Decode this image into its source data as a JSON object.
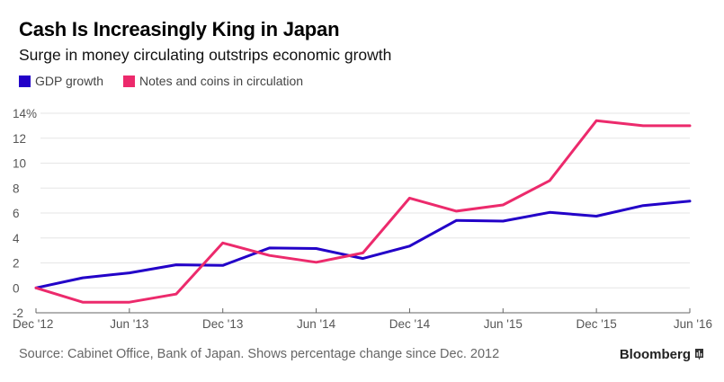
{
  "header": {
    "title": "Cash Is Increasingly King in Japan",
    "subtitle": "Surge in money circulating outstrips economic growth"
  },
  "legend": [
    {
      "label": "GDP growth",
      "color": "#2200c8"
    },
    {
      "label": "Notes and coins in circulation",
      "color": "#ec2a6c"
    }
  ],
  "footer": {
    "source": "Source: Cabinet Office, Bank of Japan. Shows percentage change since Dec. 2012",
    "brand": "Bloomberg"
  },
  "chart_data": {
    "type": "line",
    "title": "Cash Is Increasingly King in Japan",
    "subtitle": "Surge in money circulating outstrips economic growth",
    "xlabel": "",
    "ylabel": "",
    "x": [
      "Dec '12",
      "Mar '13",
      "Jun '13",
      "Sep '13",
      "Dec '13",
      "Mar '14",
      "Jun '14",
      "Sep '14",
      "Dec '14",
      "Mar '15",
      "Jun '15",
      "Sep '15",
      "Dec '15",
      "Mar '16",
      "Jun '16"
    ],
    "x_tick_labels": [
      "Dec '12",
      "Jun '13",
      "Dec '13",
      "Jun '14",
      "Dec '14",
      "Jun '15",
      "Dec '15",
      "Jun '16"
    ],
    "y_ticks": [
      -2,
      0,
      2,
      4,
      6,
      8,
      10,
      12,
      14
    ],
    "y_tick_labels": [
      "-2",
      "0",
      "2",
      "4",
      "6",
      "8",
      "10",
      "12",
      "14%"
    ],
    "ylim": [
      -2,
      14
    ],
    "grid": true,
    "legend_position": "top-left",
    "series": [
      {
        "name": "GDP growth",
        "color": "#2200c8",
        "values": [
          0,
          0.8,
          1.2,
          1.85,
          1.8,
          3.2,
          3.15,
          2.35,
          3.35,
          5.4,
          5.35,
          6.05,
          5.75,
          6.6,
          6.95
        ]
      },
      {
        "name": "Notes and coins in circulation",
        "color": "#ec2a6c",
        "values": [
          0,
          -1.15,
          -1.15,
          -0.5,
          3.6,
          2.6,
          2.05,
          2.8,
          7.2,
          6.15,
          6.65,
          8.6,
          13.4,
          13.0,
          13.0
        ]
      }
    ]
  }
}
